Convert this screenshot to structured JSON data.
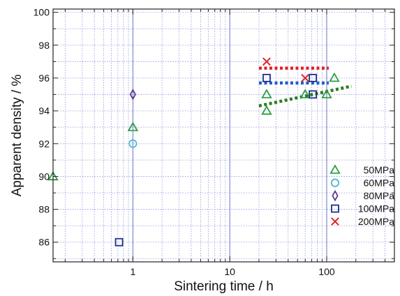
{
  "chart_data": {
    "type": "scatter",
    "xlabel": "Sintering time / h",
    "ylabel": "Apparent density / %",
    "x_scale": "log",
    "xlim": [
      0.15,
      500
    ],
    "ylim": [
      84.8,
      100.2
    ],
    "x_ticks": [
      {
        "value": 1,
        "label": "1"
      },
      {
        "value": 10,
        "label": "10"
      },
      {
        "value": 100,
        "label": "100"
      }
    ],
    "y_ticks": [
      {
        "value": 86,
        "label": "86"
      },
      {
        "value": 88,
        "label": "88"
      },
      {
        "value": 90,
        "label": "90"
      },
      {
        "value": 92,
        "label": "92"
      },
      {
        "value": 94,
        "label": "94"
      },
      {
        "value": 96,
        "label": "96"
      },
      {
        "value": 98,
        "label": "98"
      },
      {
        "value": 100,
        "label": "100"
      }
    ],
    "grid": true,
    "legend_position": "bottom-right",
    "series": [
      {
        "name": "50MPa",
        "marker": "triangle",
        "color": "#2e9e44",
        "points": [
          [
            0.15,
            90
          ],
          [
            1,
            93
          ],
          [
            24,
            95
          ],
          [
            24,
            94
          ],
          [
            60,
            95
          ],
          [
            100,
            95
          ],
          [
            120,
            96
          ]
        ]
      },
      {
        "name": "60MPa",
        "marker": "circle",
        "color": "#4fb8cc",
        "points": [
          [
            1,
            92
          ]
        ]
      },
      {
        "name": "80MPa",
        "marker": "diamond",
        "color": "#5b3a8e",
        "points": [
          [
            1,
            95
          ]
        ]
      },
      {
        "name": "100MPa",
        "marker": "square",
        "color": "#1d2f8f",
        "points": [
          [
            0.72,
            86
          ],
          [
            24,
            96
          ],
          [
            72,
            96
          ],
          [
            72,
            95
          ]
        ]
      },
      {
        "name": "200MPa",
        "marker": "cross",
        "color": "#d9232e",
        "points": [
          [
            24,
            97
          ],
          [
            60,
            96
          ]
        ]
      }
    ],
    "trend_lines": [
      {
        "color": "#e0202a",
        "points": [
          [
            20,
            96.6
          ],
          [
            105,
            96.6
          ]
        ]
      },
      {
        "color": "#1f5fc4",
        "points": [
          [
            20,
            95.7
          ],
          [
            105,
            95.7
          ]
        ]
      },
      {
        "color": "#2f7a26",
        "points": [
          [
            20,
            94.3
          ],
          [
            180,
            95.5
          ]
        ]
      }
    ]
  }
}
